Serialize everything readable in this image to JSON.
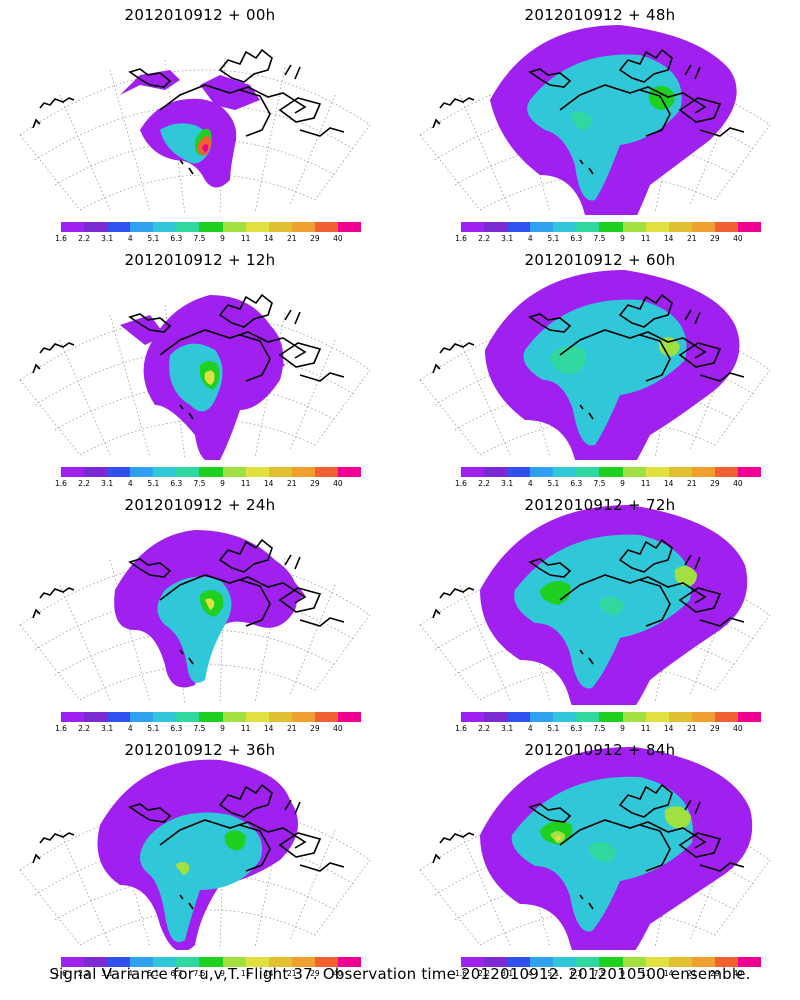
{
  "panels": [
    {
      "title": "2012010912 + 00h",
      "blob": 0
    },
    {
      "title": "2012010912 + 12h",
      "blob": 1
    },
    {
      "title": "2012010912 + 24h",
      "blob": 2
    },
    {
      "title": "2012010912 + 36h",
      "blob": 3
    },
    {
      "title": "2012010912 + 48h",
      "blob": 4
    },
    {
      "title": "2012010912 + 60h",
      "blob": 5
    },
    {
      "title": "2012010912 + 72h",
      "blob": 6
    },
    {
      "title": "2012010912 + 84h",
      "blob": 7
    }
  ],
  "colorbar": {
    "labels": [
      "1.6",
      "2.2",
      "3.1",
      "4",
      "5.1",
      "6.3",
      "7.5",
      "9",
      "11",
      "14",
      "21",
      "29",
      "40"
    ],
    "colors": [
      "#ffffff",
      "#a020f0",
      "#7a2ad0",
      "#3050f0",
      "#30a0f0",
      "#30c8d8",
      "#30d8a0",
      "#20d020",
      "#a0e040",
      "#e0e040",
      "#e0c030",
      "#f0a030",
      "#f06030",
      "#f00090"
    ]
  },
  "footer": "Signal Variance for u,v,T. Flight 37. Observation time 2012010912. 2012010500 ensemble."
}
